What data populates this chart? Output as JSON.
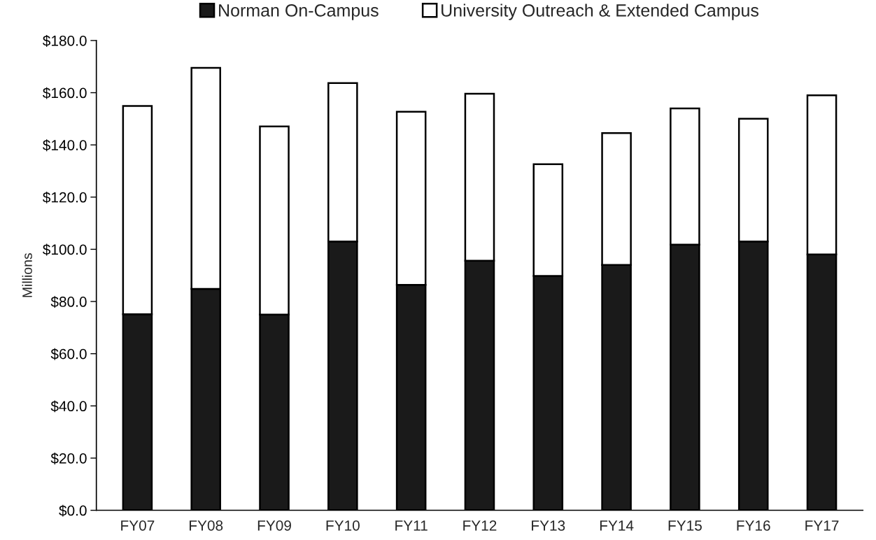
{
  "chart_data": {
    "type": "bar",
    "stacked": true,
    "ylabel": "Millions",
    "categories": [
      "FY07",
      "FY08",
      "FY09",
      "FY10",
      "FY11",
      "FY12",
      "FY13",
      "FY14",
      "FY15",
      "FY16",
      "FY17"
    ],
    "series": [
      {
        "name": "Norman On-Campus",
        "color": "#1a1a1a",
        "values": [
          75.1,
          84.8,
          75.0,
          103.0,
          86.4,
          95.6,
          89.8,
          94.0,
          101.8,
          103.0,
          98.0
        ]
      },
      {
        "name": "University Outreach & Extended Campus",
        "color": "#ffffff",
        "values": [
          79.8,
          84.7,
          72.1,
          60.7,
          66.3,
          64.0,
          42.8,
          50.5,
          52.2,
          47.0,
          61.0
        ]
      }
    ],
    "ylim": [
      0,
      180
    ],
    "yticks": [
      {
        "value": 0,
        "label": "$0.0"
      },
      {
        "value": 20,
        "label": "$20.0"
      },
      {
        "value": 40,
        "label": "$40.0"
      },
      {
        "value": 60,
        "label": "$60.0"
      },
      {
        "value": 80,
        "label": "$80.0"
      },
      {
        "value": 100,
        "label": "$100.0"
      },
      {
        "value": 120,
        "label": "$120.0"
      },
      {
        "value": 140,
        "label": "$140.0"
      },
      {
        "value": 160,
        "label": "$160.0"
      },
      {
        "value": 180,
        "label": "$180.0"
      }
    ],
    "grid": false,
    "legend": "top"
  }
}
